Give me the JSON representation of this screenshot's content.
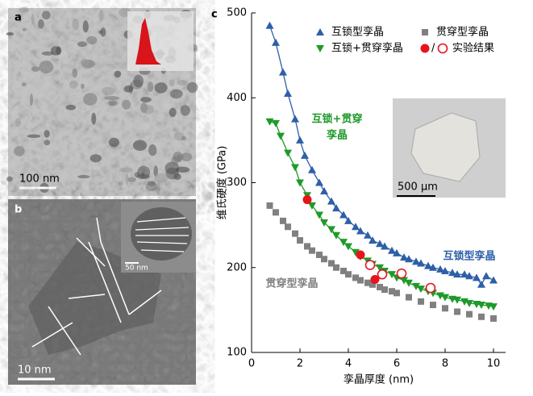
{
  "panels": {
    "a": {
      "label": "a",
      "scale_bar": "100 nm"
    },
    "b": {
      "label": "b",
      "scale_bar": "10 nm",
      "inset_scale_bar": "50 nm"
    }
  },
  "chart_data": {
    "type": "scatter",
    "panel_label": "c",
    "x_label": "孪晶厚度 (nm)",
    "y_label": "维氏硬度 (GPa)",
    "xlim": [
      0,
      10.5
    ],
    "ylim": [
      100,
      500
    ],
    "xticks": [
      0,
      2,
      4,
      6,
      8,
      10
    ],
    "yticks": [
      100,
      200,
      300,
      400,
      500
    ],
    "inset_scale_bar": "500 μm",
    "legend_separator": "/",
    "annotations": [
      {
        "text": "互锁+贯穿",
        "color": "#1f9a2a"
      },
      {
        "text": "孪晶",
        "color": "#1f9a2a"
      },
      {
        "text": "互锁型孪晶",
        "color": "#2e5fa8"
      },
      {
        "text": "贯穿型孪晶",
        "color": "#808080"
      }
    ],
    "series": [
      {
        "name": "互锁型孪晶",
        "color": "#2e5fa8",
        "marker": "triangle-up",
        "line": true,
        "x": [
          0.75,
          1.0,
          1.3,
          1.5,
          1.8,
          2.0,
          2.2,
          2.5,
          2.8,
          3.0,
          3.3,
          3.5,
          3.8,
          4.0,
          4.3,
          4.5,
          4.8,
          5.0,
          5.3,
          5.5,
          5.8,
          6.0,
          6.3,
          6.5,
          6.8,
          7.0,
          7.3,
          7.5,
          7.8,
          8.0,
          8.3,
          8.5,
          8.8,
          9.0,
          9.3,
          9.5,
          9.7,
          10.0
        ],
        "values": [
          485,
          465,
          430,
          405,
          375,
          350,
          332,
          315,
          300,
          290,
          278,
          270,
          262,
          255,
          248,
          243,
          238,
          232,
          228,
          225,
          220,
          217,
          212,
          210,
          207,
          205,
          202,
          200,
          198,
          196,
          194,
          192,
          192,
          190,
          188,
          180,
          190,
          185
        ]
      },
      {
        "name": "互锁+贯穿孪晶",
        "color": "#1f9a2a",
        "marker": "triangle-down",
        "line": true,
        "x": [
          0.75,
          1.0,
          1.2,
          1.5,
          1.8,
          2.0,
          2.3,
          2.5,
          2.8,
          3.0,
          3.3,
          3.5,
          3.8,
          4.0,
          4.3,
          4.5,
          4.8,
          5.0,
          5.3,
          5.5,
          5.8,
          6.0,
          6.3,
          6.5,
          6.8,
          7.0,
          7.3,
          7.5,
          7.8,
          8.0,
          8.3,
          8.5,
          8.8,
          9.0,
          9.3,
          9.5,
          9.8,
          10.0
        ],
        "values": [
          372,
          370,
          355,
          335,
          318,
          300,
          285,
          273,
          262,
          253,
          245,
          238,
          230,
          225,
          218,
          213,
          208,
          204,
          200,
          196,
          192,
          188,
          185,
          182,
          178,
          175,
          172,
          170,
          167,
          165,
          163,
          162,
          160,
          158,
          157,
          156,
          155,
          154
        ]
      },
      {
        "name": "贯穿型孪晶",
        "color": "#808080",
        "marker": "square",
        "line": false,
        "x": [
          0.75,
          1.0,
          1.3,
          1.5,
          1.8,
          2.0,
          2.3,
          2.5,
          2.8,
          3.0,
          3.3,
          3.5,
          3.8,
          4.0,
          4.3,
          4.5,
          4.8,
          5.0,
          5.3,
          5.5,
          5.8,
          6.0,
          6.5,
          7.0,
          7.5,
          8.0,
          8.5,
          9.0,
          9.5,
          10.0
        ],
        "values": [
          273,
          265,
          255,
          248,
          240,
          232,
          225,
          220,
          215,
          210,
          205,
          200,
          196,
          192,
          188,
          185,
          182,
          180,
          177,
          174,
          172,
          170,
          165,
          160,
          156,
          152,
          148,
          145,
          142,
          140
        ]
      },
      {
        "name": "实验结果",
        "color": "#e8131b",
        "marker": "circle",
        "line": false,
        "x": [
          2.3,
          4.5,
          5.1,
          4.9,
          5.4,
          6.2,
          7.4
        ],
        "values": [
          280,
          215,
          186,
          203,
          192,
          193,
          176
        ],
        "filled": [
          true,
          true,
          true,
          false,
          false,
          false,
          false
        ]
      }
    ]
  }
}
